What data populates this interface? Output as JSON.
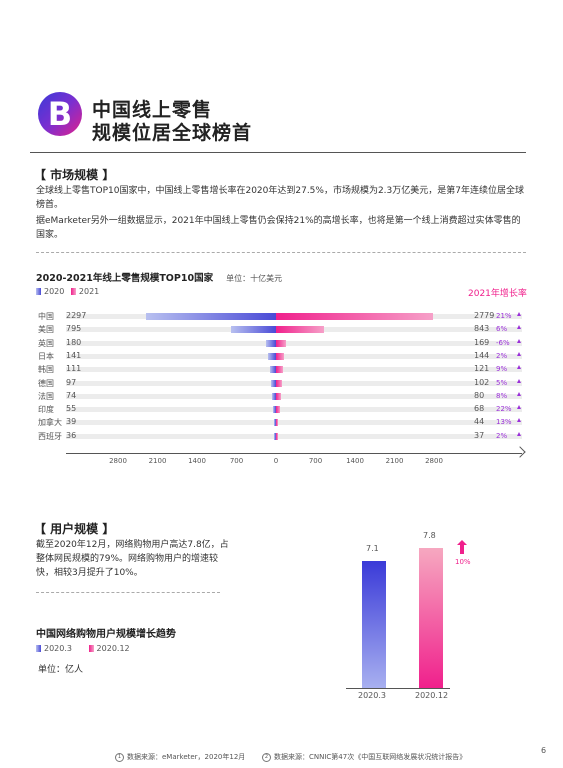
{
  "header": {
    "badge_letter": "B",
    "title_line1": "中国线上零售",
    "title_line2": "规模位居全球榜首"
  },
  "market": {
    "heading": "【 市场规模 】",
    "para1": "全球线上零售TOP10国家中，中国线上零售增长率在2020年达到27.5%，市场规模为2.3万亿美元，是第7年连续位居全球榜首。",
    "para2": "据eMarketer另外一组数据显示，2021年中国线上零售仍会保持21%的高增长率，也将是第一个线上消费超过实体零售的国家。"
  },
  "colors": {
    "y2020": "#4a4ad6",
    "y2021": "#f0208c",
    "rate": "#9b30d9"
  },
  "chart_data": [
    {
      "type": "bar",
      "title": "2020-2021年线上零售规模TOP10国家",
      "unit": "单位：十亿美元",
      "rate_title": "2021年增长率",
      "legend": [
        "2020",
        "2021"
      ],
      "categories": [
        "中国",
        "美国",
        "英国",
        "日本",
        "韩国",
        "德国",
        "法国",
        "印度",
        "加拿大",
        "西班牙"
      ],
      "series": [
        {
          "name": "2020",
          "values": [
            2297,
            795,
            180,
            141,
            111,
            97,
            74,
            55,
            39,
            36
          ]
        },
        {
          "name": "2021",
          "values": [
            2779,
            843,
            169,
            144,
            121,
            102,
            80,
            68,
            44,
            37
          ]
        }
      ],
      "growth_2021": [
        "21%",
        "6%",
        "-6%",
        "2%",
        "9%",
        "5%",
        "8%",
        "22%",
        "13%",
        "2%"
      ],
      "xticks_left": [
        "2800",
        "2100",
        "1400",
        "700",
        "0"
      ],
      "xticks_right": [
        "700",
        "1400",
        "2100",
        "2800"
      ],
      "xlim": [
        -2800,
        2800
      ]
    },
    {
      "type": "bar",
      "title": "中国网络购物用户规模增长趋势",
      "unit": "单位：亿人",
      "legend": [
        "2020.3",
        "2020.12"
      ],
      "categories": [
        "2020.3",
        "2020.12"
      ],
      "values": [
        7.1,
        7.8
      ],
      "growth": "10%",
      "ylim": [
        0,
        8.5
      ]
    }
  ],
  "users": {
    "heading": "【 用户规模 】",
    "para": "截至2020年12月，网络购物用户高达7.8亿，占整体网民规模的79%。网络购物用户的增速较快，相较3月提升了10%。"
  },
  "footer": {
    "note1_num": "1",
    "note1": "数据来源：eMarketer，2020年12月",
    "note2_num": "2",
    "note2": "数据来源：CNNIC第47次《中国互联网络发展状况统计报告》",
    "page": "6"
  }
}
